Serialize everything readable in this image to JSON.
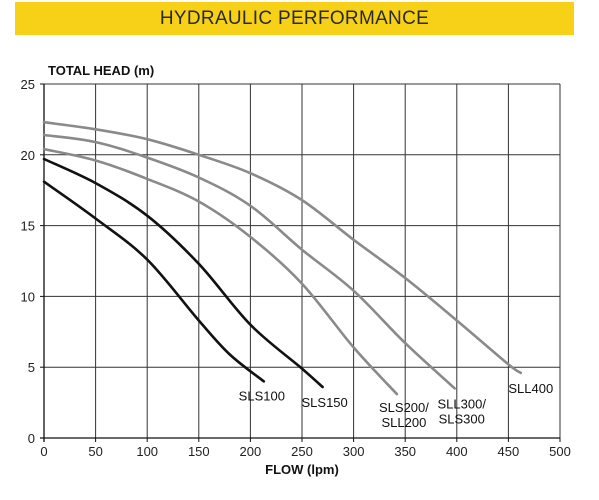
{
  "header": {
    "title": "HYDRAULIC PERFORMANCE"
  },
  "colors": {
    "banner": "#f7d117",
    "dark_series": "#111111",
    "grey_series": "#8a8a8a",
    "grid": "#333333"
  },
  "chart_data": {
    "type": "line",
    "title": "HYDRAULIC PERFORMANCE",
    "xlabel": "FLOW (lpm)",
    "ylabel": "TOTAL HEAD (m)",
    "xlim": [
      0,
      500
    ],
    "ylim": [
      0,
      25
    ],
    "xticks": [
      0,
      50,
      100,
      150,
      200,
      250,
      300,
      350,
      400,
      450,
      500
    ],
    "yticks": [
      0,
      5,
      10,
      15,
      20,
      25
    ],
    "grid": true,
    "series": [
      {
        "name": "SLS100",
        "label_lines": [
          "SLS100"
        ],
        "color": "dark",
        "x": [
          0,
          50,
          100,
          150,
          180,
          213
        ],
        "y": [
          18.1,
          15.5,
          12.6,
          8.3,
          5.9,
          4.0
        ]
      },
      {
        "name": "SLS150",
        "label_lines": [
          "SLS150"
        ],
        "color": "dark",
        "x": [
          0,
          50,
          100,
          150,
          200,
          250,
          270
        ],
        "y": [
          19.7,
          18.0,
          15.7,
          12.3,
          8.0,
          4.9,
          3.6
        ]
      },
      {
        "name": "SLS200/SLL200",
        "label_lines": [
          "SLS200/",
          "SLL200"
        ],
        "color": "grey",
        "x": [
          0,
          50,
          100,
          150,
          200,
          250,
          300,
          342
        ],
        "y": [
          20.4,
          19.6,
          18.3,
          16.7,
          14.2,
          10.9,
          6.4,
          3.1
        ]
      },
      {
        "name": "SLL300/SLS300",
        "label_lines": [
          "SLL300/",
          "SLS300"
        ],
        "color": "grey",
        "x": [
          0,
          50,
          100,
          150,
          200,
          250,
          300,
          350,
          398
        ],
        "y": [
          21.4,
          20.9,
          19.8,
          18.4,
          16.4,
          13.3,
          10.4,
          6.7,
          3.5
        ]
      },
      {
        "name": "SLL400",
        "label_lines": [
          "SLL400"
        ],
        "color": "grey",
        "x": [
          0,
          50,
          100,
          150,
          200,
          250,
          300,
          350,
          400,
          450,
          462
        ],
        "y": [
          22.3,
          21.8,
          21.1,
          20.0,
          18.7,
          16.8,
          14.0,
          11.3,
          8.3,
          5.2,
          4.6
        ]
      }
    ]
  }
}
